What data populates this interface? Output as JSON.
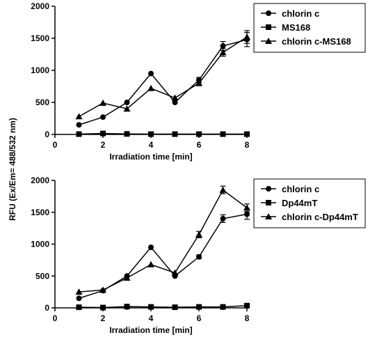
{
  "y_axis_label": "RFU (Ex/Em= 488/532 nm)",
  "chart_data": [
    {
      "type": "line",
      "xlabel": "Irradiation time [min]",
      "ylabel": "RFU (Ex/Em= 488/532 nm)",
      "xlim": [
        0,
        8
      ],
      "ylim": [
        0,
        2000
      ],
      "xticks": [
        "0",
        "2",
        "4",
        "6",
        "8"
      ],
      "yticks": [
        "0",
        "500",
        "1000",
        "1500",
        "2000"
      ],
      "grid": false,
      "legend_position": "top-right",
      "x": [
        1,
        2,
        3,
        4,
        5,
        6,
        7,
        8
      ],
      "series": [
        {
          "name": "chlorin c",
          "marker": "circle",
          "values": [
            150,
            270,
            500,
            950,
            500,
            850,
            1380,
            1480
          ],
          "errors": [
            0,
            0,
            0,
            0,
            0,
            40,
            70,
            110
          ]
        },
        {
          "name": "MS168",
          "marker": "square",
          "values": [
            5,
            15,
            8,
            5,
            5,
            5,
            5,
            5
          ],
          "errors": [
            0,
            0,
            0,
            0,
            0,
            0,
            0,
            0
          ]
        },
        {
          "name": "chlorin c-MS168",
          "marker": "triangle",
          "values": [
            280,
            490,
            400,
            720,
            570,
            800,
            1280,
            1520
          ],
          "errors": [
            0,
            0,
            0,
            0,
            0,
            40,
            60,
            100
          ]
        }
      ]
    },
    {
      "type": "line",
      "xlabel": "Irradiation time [min]",
      "ylabel": "RFU (Ex/Em= 488/532 nm)",
      "xlim": [
        0,
        8
      ],
      "ylim": [
        0,
        2000
      ],
      "xticks": [
        "0",
        "2",
        "4",
        "6",
        "8"
      ],
      "yticks": [
        "0",
        "500",
        "1000",
        "1500",
        "2000"
      ],
      "grid": false,
      "legend_position": "top-right",
      "x": [
        1,
        2,
        3,
        4,
        5,
        6,
        7,
        8
      ],
      "series": [
        {
          "name": "chlorin c",
          "marker": "circle",
          "values": [
            150,
            270,
            500,
            950,
            500,
            800,
            1400,
            1470
          ],
          "errors": [
            0,
            0,
            0,
            0,
            0,
            30,
            60,
            80
          ]
        },
        {
          "name": "Dp44mT",
          "marker": "square",
          "values": [
            10,
            5,
            20,
            15,
            10,
            15,
            15,
            35
          ],
          "errors": [
            0,
            0,
            0,
            0,
            0,
            0,
            0,
            0
          ]
        },
        {
          "name": "chlorin c-Dp44mT",
          "marker": "triangle",
          "values": [
            250,
            280,
            470,
            680,
            550,
            1150,
            1850,
            1570
          ],
          "errors": [
            0,
            0,
            0,
            0,
            0,
            50,
            60,
            60
          ]
        }
      ]
    }
  ]
}
